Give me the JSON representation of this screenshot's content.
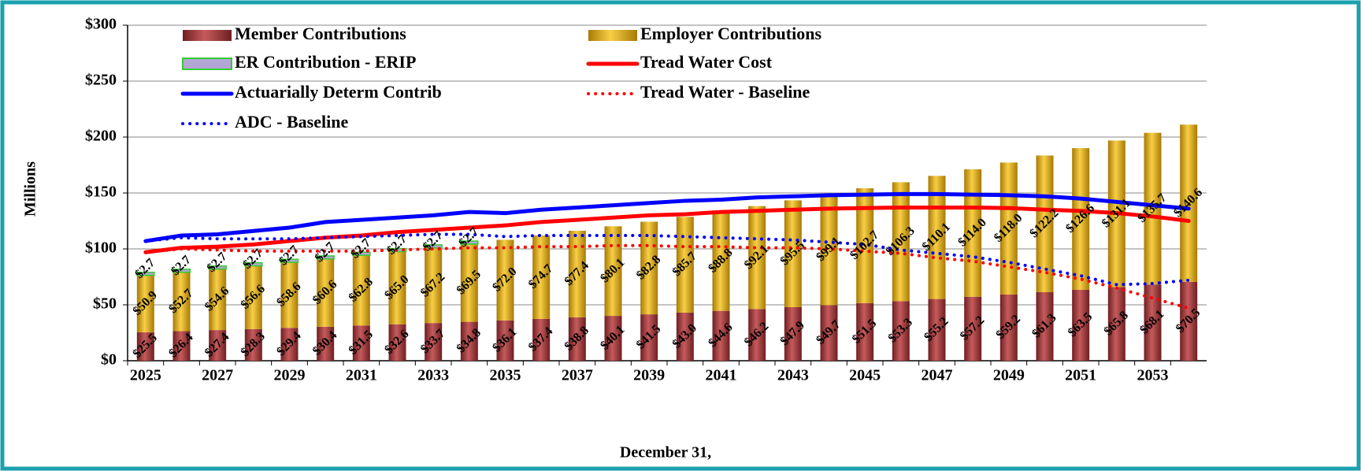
{
  "chart_data": {
    "type": "bar",
    "stacked": true,
    "y_label": "Millions",
    "x_label": "December 31,",
    "categories": [
      "2025",
      null,
      "2027",
      null,
      "2029",
      null,
      "2031",
      null,
      "2033",
      null,
      "2035",
      null,
      "2037",
      null,
      "2039",
      null,
      "2041",
      null,
      "2043",
      null,
      "2045",
      null,
      "2047",
      null,
      "2049",
      null,
      "2051",
      null,
      "2053",
      null
    ],
    "ylim": [
      0,
      300
    ],
    "yticks": [
      {
        "value": 0,
        "label": "$0"
      },
      {
        "value": 50,
        "label": "$50"
      },
      {
        "value": 100,
        "label": "$100"
      },
      {
        "value": 150,
        "label": "$150"
      },
      {
        "value": 200,
        "label": "$200"
      },
      {
        "value": 250,
        "label": "$250"
      },
      {
        "value": 300,
        "label": "$300"
      }
    ],
    "grid": true,
    "legend": "top-left",
    "series": [
      {
        "name": "Member Contributions",
        "type": "bar",
        "color": "#a13a3c",
        "values": [
          25.5,
          26.4,
          27.4,
          28.3,
          29.4,
          30.4,
          31.5,
          32.6,
          33.7,
          34.8,
          36.1,
          37.4,
          38.8,
          40.1,
          41.5,
          43.0,
          44.6,
          46.2,
          47.9,
          49.7,
          51.5,
          53.3,
          55.2,
          57.2,
          59.2,
          61.3,
          63.5,
          65.8,
          68.1,
          70.5
        ],
        "value_labels": [
          "$25.5",
          "$26.4",
          "$27.4",
          "$28.3",
          "$29.4",
          "$30.4",
          "$31.5",
          "$32.6",
          "$33.7",
          "$34.8",
          "$36.1",
          "$37.4",
          "$38.8",
          "$40.1",
          "$41.5",
          "$43.0",
          "$44.6",
          "$46.2",
          "$47.9",
          "$49.7",
          "$51.5",
          "$53.3",
          "$55.2",
          "$57.2",
          "$59.2",
          "$61.3",
          "$63.5",
          "$65.8",
          "$68.1",
          "$70.5"
        ]
      },
      {
        "name": "Employer Contributions",
        "type": "bar",
        "color": "#e6ad12",
        "values": [
          50.9,
          52.7,
          54.6,
          56.6,
          58.6,
          60.6,
          62.8,
          65.0,
          67.2,
          69.5,
          72.0,
          74.7,
          77.4,
          80.1,
          82.8,
          85.7,
          88.8,
          92.1,
          95.5,
          99.1,
          102.7,
          106.3,
          110.1,
          114.0,
          118.0,
          122.2,
          126.6,
          131.1,
          135.7,
          140.6
        ],
        "value_labels": [
          "$50.9",
          "$52.7",
          "$54.6",
          "$56.6",
          "$58.6",
          "$60.6",
          "$62.8",
          "$65.0",
          "$67.2",
          "$69.5",
          "$72.0",
          "$74.7",
          "$77.4",
          "$80.1",
          "$82.8",
          "$85.7",
          "$88.8",
          "$92.1",
          "$95.5",
          "$99.1",
          "$102.7",
          "$106.3",
          "$110.1",
          "$114.0",
          "$118.0",
          "$122.2",
          "$126.6",
          "$131.1",
          "$135.7",
          "$140.6"
        ]
      },
      {
        "name": "ER Contribution - ERIP",
        "type": "bar",
        "color": "#b3a6d4",
        "values": [
          2.7,
          2.7,
          2.7,
          2.7,
          2.7,
          2.7,
          2.7,
          2.7,
          2.7,
          2.7,
          null,
          null,
          null,
          null,
          null,
          null,
          null,
          null,
          null,
          null,
          null,
          null,
          null,
          null,
          null,
          null,
          null,
          null,
          null,
          null
        ],
        "value_labels": [
          "$2.7",
          "$2.7",
          "$2.7",
          "$2.7",
          "$2.7",
          "$2.7",
          "$2.7",
          "$2.7",
          "$2.7",
          "$2.7",
          null,
          null,
          null,
          null,
          null,
          null,
          null,
          null,
          null,
          null,
          null,
          null,
          null,
          null,
          null,
          null,
          null,
          null,
          null,
          null
        ]
      },
      {
        "name": "Tread Water Cost",
        "type": "line",
        "color": "#ff0000",
        "style": "solid",
        "values": [
          97,
          101,
          102,
          104,
          107,
          110,
          112,
          115,
          117,
          119,
          121,
          124,
          126,
          128,
          130,
          131,
          133,
          134,
          135,
          136,
          136.5,
          137,
          137,
          137,
          136.5,
          135,
          134,
          132,
          129,
          125
        ]
      },
      {
        "name": "Actuarially Determ Contrib",
        "type": "line",
        "color": "#0000ff",
        "style": "solid",
        "values": [
          107,
          112,
          113,
          116,
          119,
          124,
          126,
          128,
          130,
          133,
          132,
          135,
          137,
          139,
          141,
          143,
          144,
          146,
          147,
          148,
          148.5,
          149,
          149,
          148.5,
          148,
          147,
          145,
          142,
          139,
          136
        ]
      },
      {
        "name": "Tread Water - Baseline",
        "type": "line",
        "color": "#ff0000",
        "style": "dotted",
        "values": [
          97,
          100,
          99,
          98,
          98,
          98,
          98,
          99,
          100,
          101,
          101,
          102,
          102,
          103,
          103,
          102,
          102,
          101,
          101,
          100,
          98,
          96,
          92,
          89,
          84,
          79,
          73,
          65,
          56,
          47
        ]
      },
      {
        "name": "ADC - Baseline",
        "type": "line",
        "color": "#0000ff",
        "style": "dotted",
        "values": [
          107,
          110,
          109,
          109,
          109,
          110,
          111,
          112,
          113,
          113,
          111,
          112,
          112,
          112,
          112,
          111,
          110,
          109,
          108,
          106,
          104,
          99,
          96,
          93,
          88,
          82,
          76,
          68,
          69,
          72
        ]
      }
    ]
  }
}
